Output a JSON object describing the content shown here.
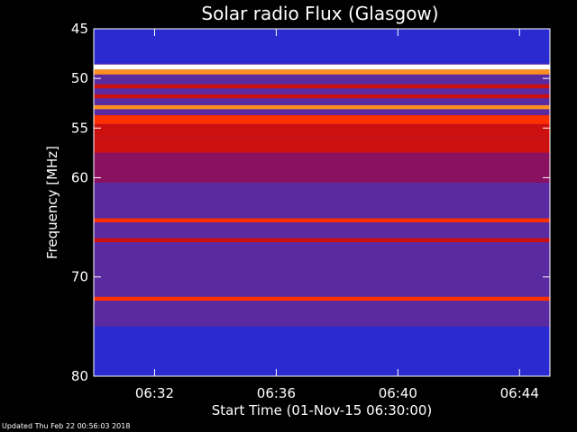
{
  "chart_data": {
    "type": "heatmap",
    "title": "Solar radio Flux (Glasgow)",
    "xlabel": "Start Time (01-Nov-15 06:30:00)",
    "ylabel": "Frequency [MHz]",
    "x_unit": "minutes after 06:30:00",
    "xlim": [
      0,
      15
    ],
    "ylim": [
      45,
      80
    ],
    "y_inverted": true,
    "x_ticks": [
      {
        "value": 2,
        "label": "06:32"
      },
      {
        "value": 6,
        "label": "06:36"
      },
      {
        "value": 10,
        "label": "06:40"
      },
      {
        "value": 14,
        "label": "06:44"
      }
    ],
    "y_ticks": [
      {
        "value": 45,
        "label": "45"
      },
      {
        "value": 50,
        "label": "50"
      },
      {
        "value": 55,
        "label": "55"
      },
      {
        "value": 60,
        "label": "60"
      },
      {
        "value": 70,
        "label": "70"
      },
      {
        "value": 80,
        "label": "80"
      }
    ],
    "colormap": [
      "#00007a",
      "#2a2ad0",
      "#5a2aa0",
      "#8a1060",
      "#cc1010",
      "#ff3000",
      "#ff9020",
      "#ffffff"
    ],
    "background_level": 0.28,
    "bands": [
      {
        "freq_start": 45.0,
        "freq_end": 48.5,
        "level": 0.15
      },
      {
        "freq_start": 48.6,
        "freq_end": 49.1,
        "level": 1.0
      },
      {
        "freq_start": 49.1,
        "freq_end": 49.6,
        "level": 0.75
      },
      {
        "freq_start": 50.6,
        "freq_end": 51.0,
        "level": 0.55
      },
      {
        "freq_start": 51.6,
        "freq_end": 52.0,
        "level": 0.55
      },
      {
        "freq_start": 52.7,
        "freq_end": 53.1,
        "level": 0.85
      },
      {
        "freq_start": 53.7,
        "freq_end": 54.6,
        "level": 0.65
      },
      {
        "freq_start": 54.6,
        "freq_end": 55.8,
        "level": 0.6
      },
      {
        "freq_start": 55.8,
        "freq_end": 57.5,
        "level": 0.5
      },
      {
        "freq_start": 57.5,
        "freq_end": 60.5,
        "level": 0.4
      },
      {
        "freq_start": 64.1,
        "freq_end": 64.5,
        "level": 0.72
      },
      {
        "freq_start": 66.1,
        "freq_end": 66.5,
        "level": 0.62
      },
      {
        "freq_start": 72.0,
        "freq_end": 72.4,
        "level": 0.72
      },
      {
        "freq_start": 75.0,
        "freq_end": 80.0,
        "level": 0.22
      }
    ]
  },
  "footer": {
    "updated_text": "Updated Thu Feb 22 00:56:03 2018"
  }
}
